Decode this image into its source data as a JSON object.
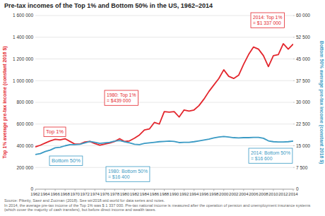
{
  "chart_data": {
    "type": "line",
    "title": "Pre-tax incomes of the Top 1% and Bottom 50% in the US, 1962–2014",
    "ylabel": "Top 1% average pre-tax income (constant 2016 $)",
    "y2label": "Bottom 50% average pre-tax income (constant 2016 $)",
    "source": "Source: Piketty, Saez and Zucman (2018). See wir2018.wid.world for data series and notes.",
    "note": "In 2014, the average pre-tax income of the Top 1% was $ 1 337 000. Pre-tax national income is measured after the operation of pension and unemployment insurance systems (which cover the majority of cash transfers), but before direct income and wealth taxes.",
    "x": [
      1962,
      1963,
      1964,
      1965,
      1966,
      1967,
      1968,
      1969,
      1970,
      1971,
      1972,
      1973,
      1974,
      1975,
      1976,
      1977,
      1978,
      1979,
      1980,
      1981,
      1982,
      1983,
      1984,
      1985,
      1986,
      1987,
      1988,
      1989,
      1990,
      1991,
      1992,
      1993,
      1994,
      1995,
      1996,
      1997,
      1998,
      1999,
      2000,
      2001,
      2002,
      2003,
      2004,
      2005,
      2006,
      2007,
      2008,
      2009,
      2010,
      2011,
      2012,
      2013,
      2014
    ],
    "series": [
      {
        "name": "Top 1%",
        "color": "#e3262d",
        "values": [
          390000,
          405000,
          425000,
          445000,
          460000,
          455000,
          465000,
          440000,
          415000,
          415000,
          435000,
          440000,
          420000,
          405000,
          415000,
          425000,
          440000,
          465000,
          439000,
          445000,
          470000,
          500000,
          545000,
          555000,
          615000,
          600000,
          715000,
          710000,
          715000,
          665000,
          730000,
          720000,
          730000,
          770000,
          830000,
          900000,
          960000,
          1020000,
          1100000,
          1040000,
          1020000,
          1050000,
          1150000,
          1240000,
          1310000,
          1290000,
          1230000,
          1130000,
          1230000,
          1240000,
          1340000,
          1290000,
          1337000
        ]
      },
      {
        "name": "Bottom 50%",
        "color": "#3a9ac4",
        "axis": "y2",
        "values": [
          12000,
          12300,
          13000,
          13500,
          14300,
          14500,
          15000,
          15400,
          15400,
          15500,
          16000,
          16500,
          16200,
          15800,
          16000,
          16200,
          16600,
          16800,
          16400,
          16000,
          15500,
          15400,
          15800,
          16000,
          16200,
          16400,
          16500,
          16600,
          16500,
          16100,
          16200,
          16200,
          16400,
          16700,
          17000,
          17300,
          17700,
          18000,
          18200,
          18000,
          17800,
          17700,
          17800,
          17800,
          17900,
          17900,
          17600,
          16700,
          16400,
          16300,
          16300,
          16400,
          16600
        ]
      }
    ],
    "annotations": [
      {
        "lines": [
          "1980: Top 1%",
          "= $439 000"
        ],
        "color": "#e3262d"
      },
      {
        "lines": [
          "1980: Bottom 50%",
          "= $16 400"
        ],
        "color": "#3a9ac4"
      },
      {
        "lines": [
          "2014: Top 1%",
          "= $1 337 000"
        ],
        "color": "#e3262d"
      },
      {
        "lines": [
          "2014: Bottom 50%",
          "= $16 600"
        ],
        "color": "#3a9ac4"
      }
    ],
    "xlim": [
      1962,
      2014
    ],
    "xticks": [
      1962,
      1964,
      1966,
      1968,
      1970,
      1972,
      1974,
      1976,
      1978,
      1980,
      1982,
      1984,
      1986,
      1988,
      1990,
      1992,
      1994,
      1996,
      1998,
      2000,
      2002,
      2004,
      2006,
      2008,
      2010,
      2012,
      2014
    ],
    "ylim": [
      0,
      1600000
    ],
    "yticks": [
      0,
      {
        "value": 200000,
        "label": "200 000"
      },
      {
        "value": 400000,
        "label": "400 000"
      },
      {
        "value": 600000,
        "label": "600 000"
      },
      {
        "value": 800000,
        "label": "800 000"
      },
      {
        "value": 1000000,
        "label": "1 000 000"
      },
      {
        "value": 1200000,
        "label": "1 200 000"
      },
      {
        "value": 1400000,
        "label": "1 400 000"
      },
      {
        "value": 1600000,
        "label": "1 600 000"
      }
    ],
    "y2lim": [
      0,
      60000
    ],
    "y2ticks": [
      0,
      {
        "value": 7500,
        "label": "7 500"
      },
      {
        "value": 15000,
        "label": "15 000"
      },
      {
        "value": 22500,
        "label": "22 500"
      },
      {
        "value": 30000,
        "label": "30 000"
      },
      {
        "value": 37500,
        "label": "37 500"
      },
      {
        "value": 45000,
        "label": "45 000"
      },
      {
        "value": 52500,
        "label": "52 500"
      },
      {
        "value": 60000,
        "label": "60 000"
      }
    ],
    "grid": true
  }
}
